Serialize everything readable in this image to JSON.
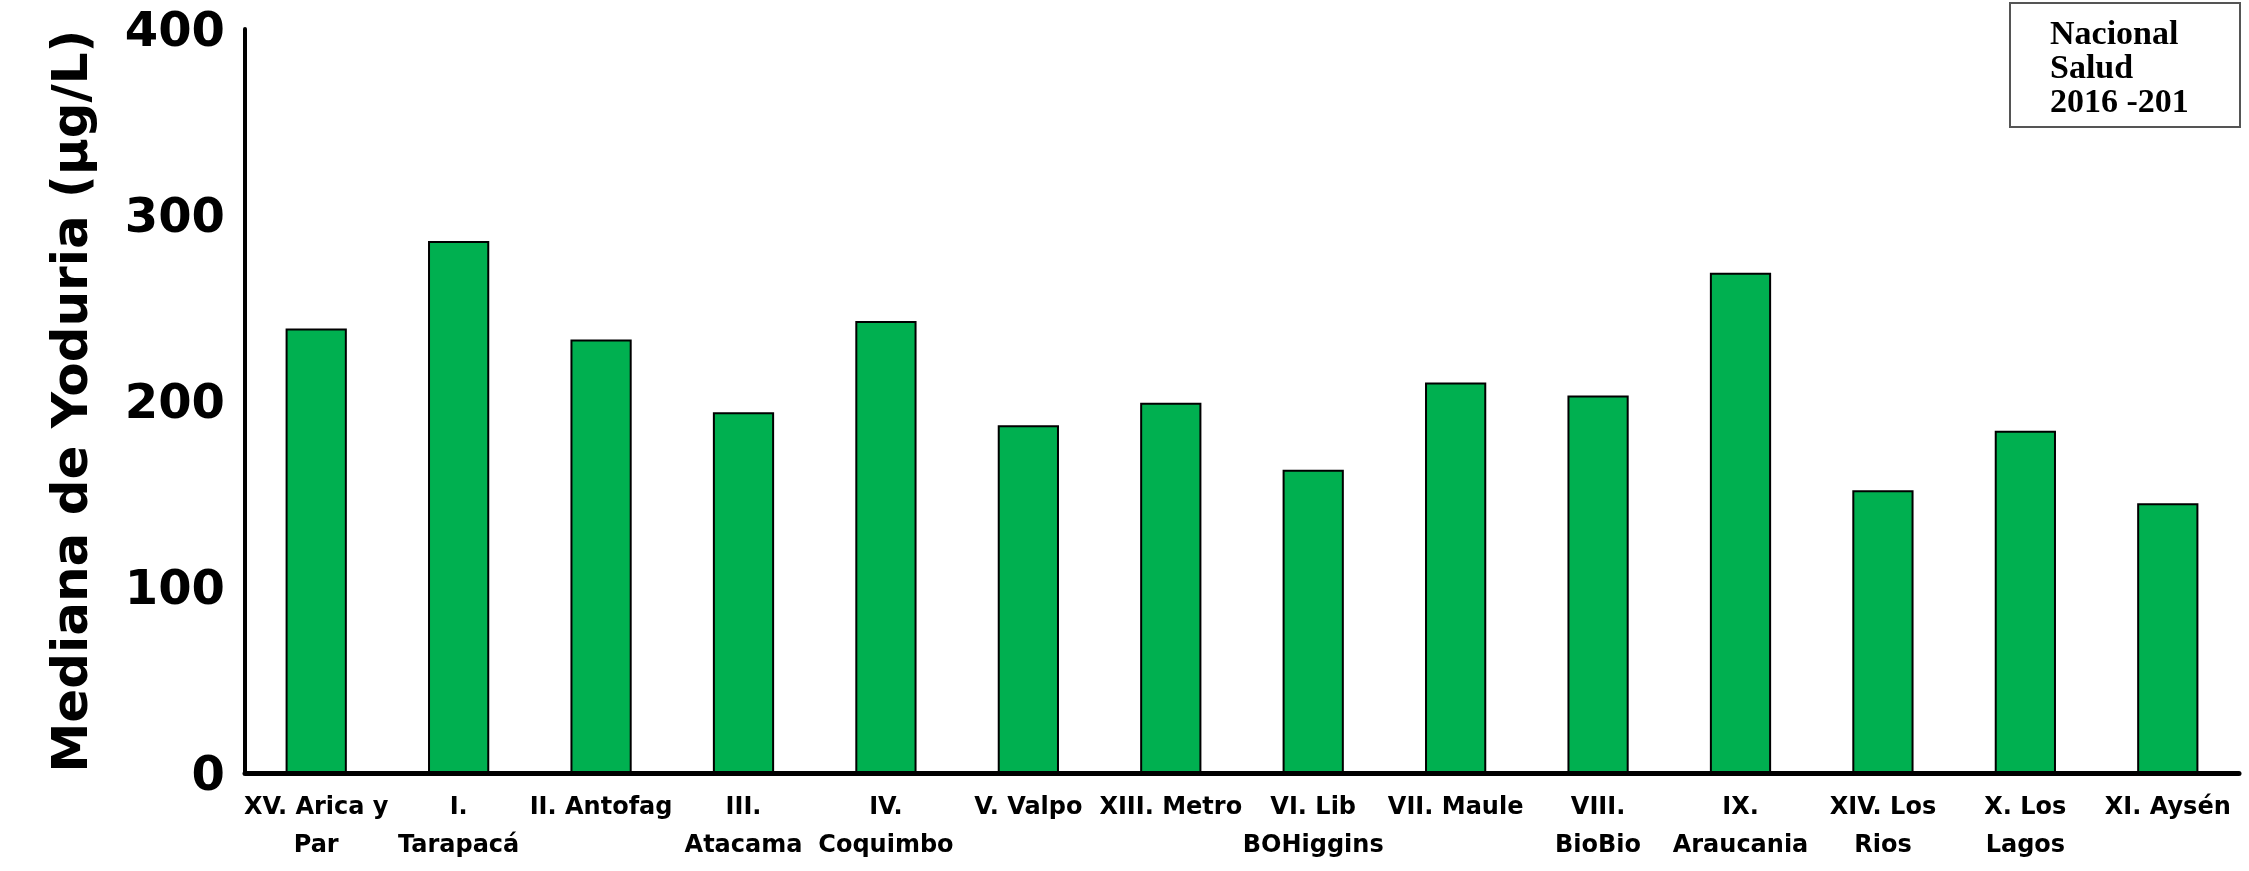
{
  "chart_data": {
    "type": "bar",
    "ylabel": "Mediana de Yoduria (µg/L)",
    "categories": [
      "XV. Arica y\nPar",
      "I.\nTarapacá",
      "II. Antofag",
      "III.\nAtacama",
      "IV.\nCoquimbo",
      "V. Valpo",
      "XIII. Metro",
      "VI. Lib\nBOHiggins",
      "VII. Maule",
      "VIII.\nBioBio",
      "IX.\nAraucania",
      "XIV. Los\nRios",
      "X. Los\nLagos",
      "XI. Aysén"
    ],
    "values": [
      239,
      286,
      233,
      194,
      243,
      187,
      199,
      163,
      210,
      203,
      269,
      152,
      184,
      145
    ],
    "color": "#00b050",
    "ylim": [
      0,
      400
    ],
    "yticks": [
      0,
      100,
      200,
      300,
      400
    ],
    "grid": false,
    "annotations": [
      "Nacional\nSalud\n2016 -201"
    ]
  }
}
